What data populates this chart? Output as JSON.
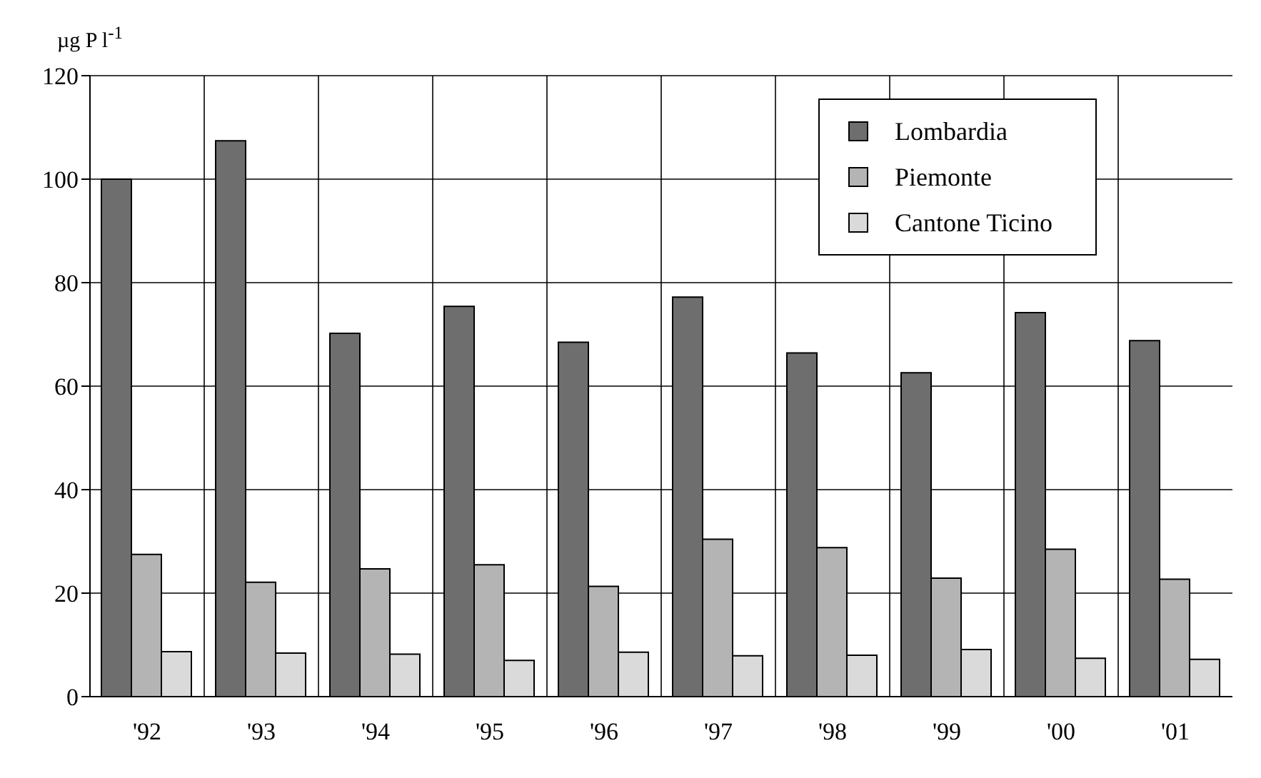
{
  "chart_data": {
    "type": "bar",
    "ylabel": "µg P l$^{-1}$",
    "categories": [
      "'92",
      "'93",
      "'94",
      "'95",
      "'96",
      "'97",
      "'98",
      "'99",
      "'00",
      "'01"
    ],
    "series": [
      {
        "name": "Lombardia",
        "color": "#6e6e6e",
        "values": [
          100,
          107.4,
          70.2,
          75.4,
          68.5,
          77.2,
          66.4,
          62.6,
          74.2,
          68.8
        ]
      },
      {
        "name": "Piemonte",
        "color": "#b4b4b4",
        "values": [
          27.5,
          22.1,
          24.7,
          25.5,
          21.3,
          30.4,
          28.8,
          22.9,
          28.5,
          22.7
        ]
      },
      {
        "name": "Cantone Ticino",
        "color": "#dadada",
        "values": [
          8.7,
          8.4,
          8.2,
          7.0,
          8.6,
          7.9,
          8.0,
          9.1,
          7.4,
          7.2
        ]
      }
    ],
    "ylim": [
      0,
      120
    ],
    "yticks": [
      0,
      20,
      40,
      60,
      80,
      100,
      120
    ],
    "grid": true,
    "legend": "top right"
  }
}
